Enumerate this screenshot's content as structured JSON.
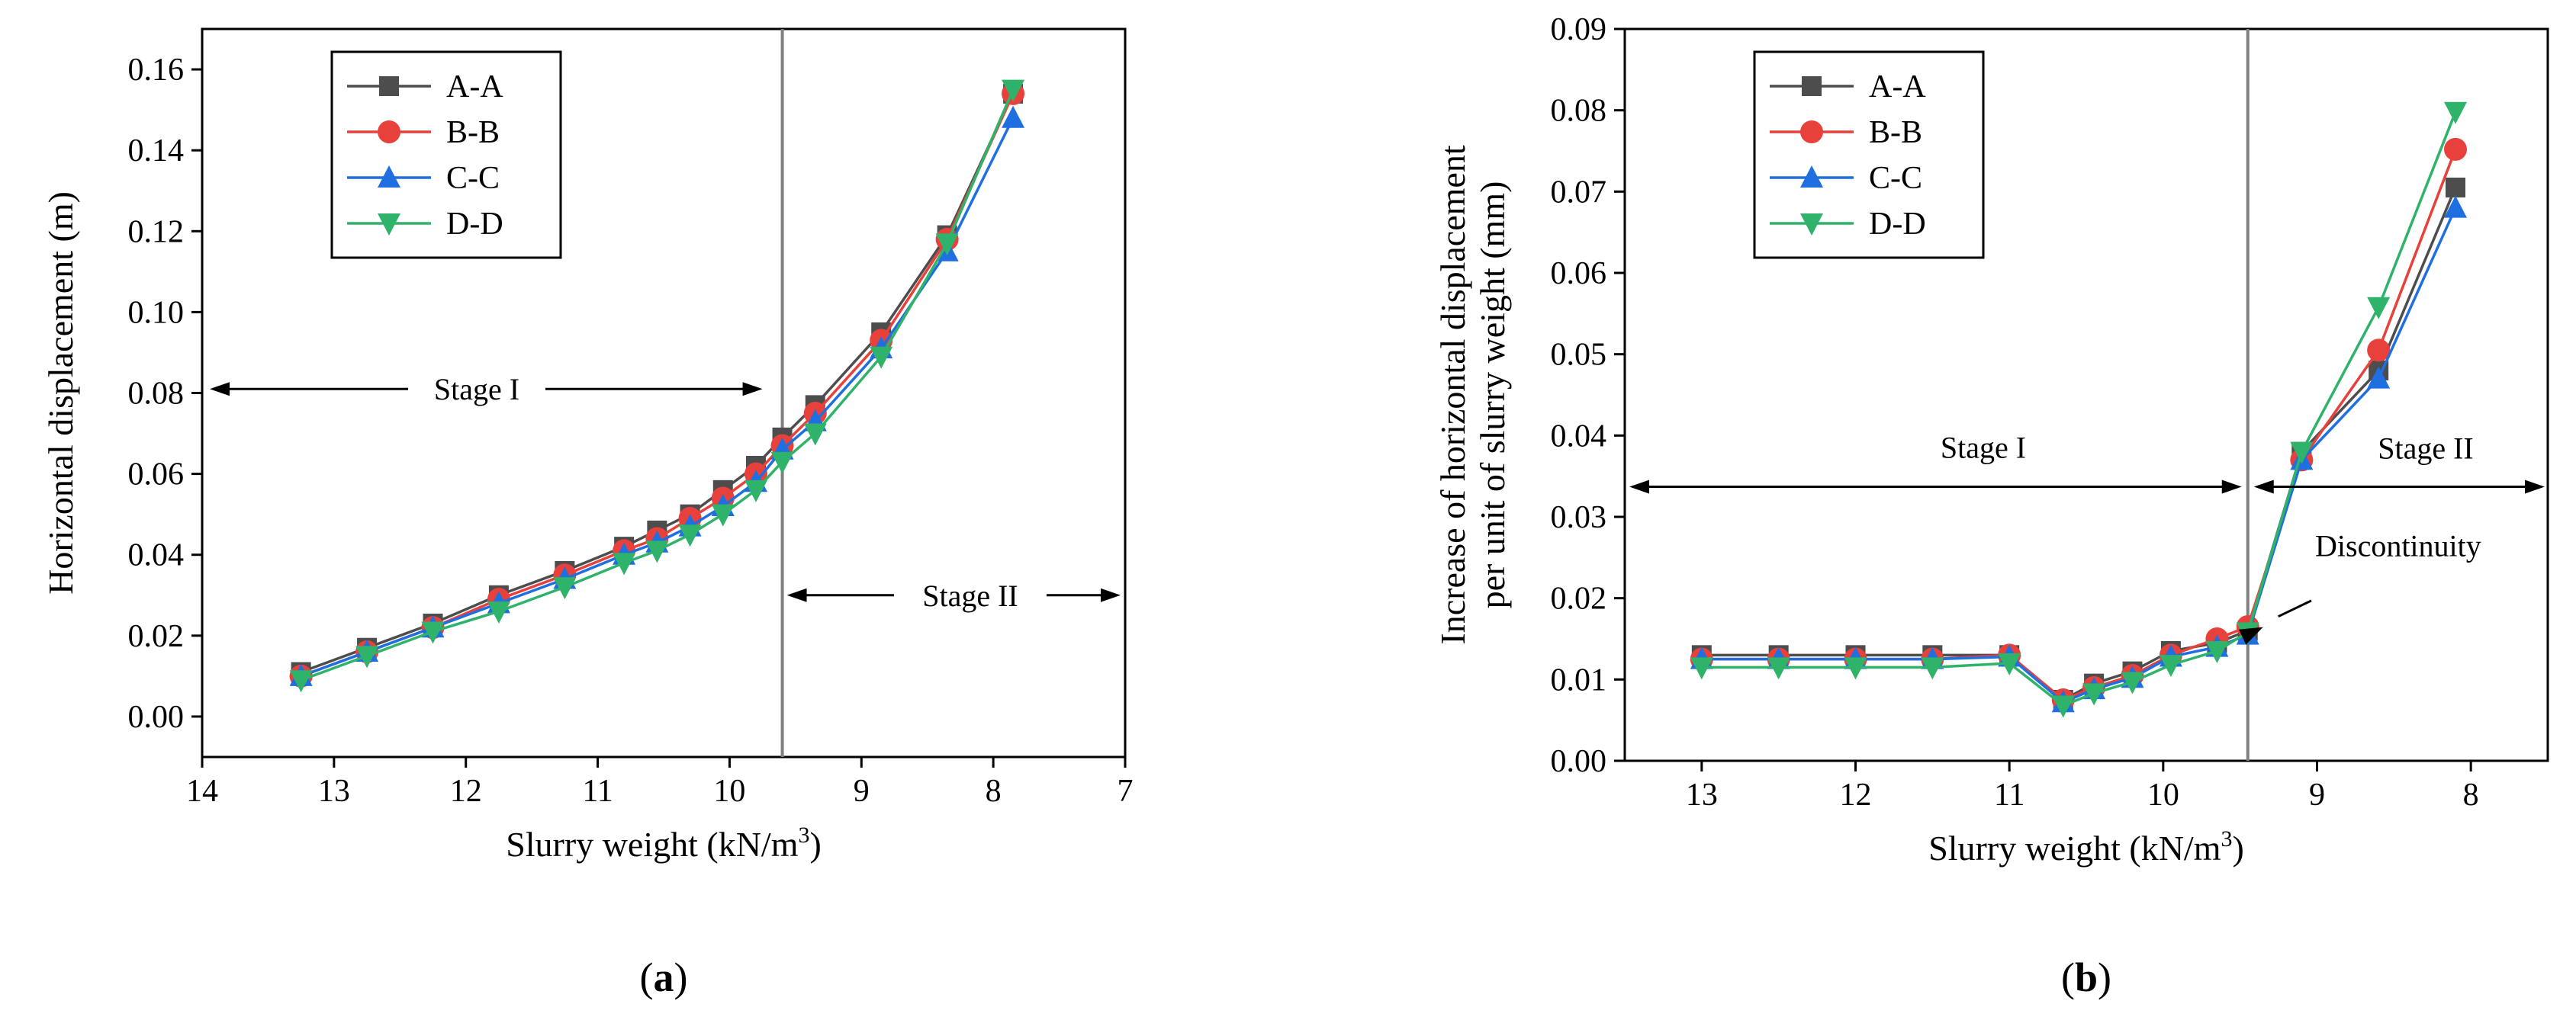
{
  "colors": {
    "A-A": "#4d4d4d",
    "B-B": "#e8413c",
    "C-C": "#1f6fe0",
    "D-D": "#2fb36a",
    "divider": "#808080"
  },
  "chart_data": [
    {
      "id": "a",
      "panel_label_prefix": "(",
      "panel_label_letter": "a",
      "panel_label_suffix": ")",
      "type": "line",
      "xlabel_main": "Slurry weight (kN/m",
      "xlabel_sup": "3",
      "xlabel_end": ")",
      "ylabel": "Horizontal displacement (m)",
      "xlim": [
        14,
        7
      ],
      "ylim": [
        -0.01,
        0.17
      ],
      "xticks": [
        "14",
        "13",
        "12",
        "11",
        "10",
        "9",
        "8",
        "7"
      ],
      "yticks": [
        "0.00",
        "0.02",
        "0.04",
        "0.06",
        "0.08",
        "0.10",
        "0.12",
        "0.14",
        "0.16"
      ],
      "divider_x": 9.6,
      "stage_labels": [
        "Stage I",
        "Stage II"
      ],
      "x": [
        13.25,
        12.75,
        12.25,
        11.75,
        11.25,
        10.8,
        10.55,
        10.3,
        10.05,
        9.8,
        9.6,
        9.35,
        8.85,
        8.35,
        7.85
      ],
      "series": [
        {
          "name": "A-A",
          "marker": "square",
          "values": [
            0.011,
            0.017,
            0.023,
            0.03,
            0.036,
            0.042,
            0.046,
            0.05,
            0.056,
            0.062,
            0.069,
            0.077,
            0.095,
            0.119,
            0.154
          ]
        },
        {
          "name": "B-B",
          "marker": "circle",
          "values": [
            0.01,
            0.016,
            0.022,
            0.029,
            0.035,
            0.041,
            0.044,
            0.049,
            0.054,
            0.06,
            0.067,
            0.075,
            0.093,
            0.118,
            0.154
          ]
        },
        {
          "name": "C-C",
          "marker": "triangle-up",
          "values": [
            0.01,
            0.016,
            0.022,
            0.028,
            0.034,
            0.04,
            0.043,
            0.047,
            0.052,
            0.058,
            0.066,
            0.073,
            0.091,
            0.115,
            0.148
          ]
        },
        {
          "name": "D-D",
          "marker": "triangle-down",
          "values": [
            0.009,
            0.015,
            0.021,
            0.026,
            0.032,
            0.038,
            0.041,
            0.045,
            0.05,
            0.056,
            0.063,
            0.07,
            0.089,
            0.117,
            0.155
          ]
        }
      ]
    },
    {
      "id": "b",
      "panel_label_prefix": "(",
      "panel_label_letter": "b",
      "panel_label_suffix": ")",
      "type": "line",
      "xlabel_main": "Slurry weight (kN/m",
      "xlabel_sup": "3",
      "xlabel_end": ")",
      "ylabel_line1": "Increase of horizontal displacement",
      "ylabel_line2": "per unit of slurry weight (mm)",
      "xlim": [
        13.5,
        7.5
      ],
      "ylim": [
        0,
        0.09
      ],
      "xticks": [
        "13",
        "12",
        "11",
        "10",
        "9",
        "8"
      ],
      "yticks": [
        "0.00",
        "0.01",
        "0.02",
        "0.03",
        "0.04",
        "0.05",
        "0.06",
        "0.07",
        "0.08",
        "0.09"
      ],
      "divider_x": 9.45,
      "stage_labels": [
        "Stage I",
        "Stage II"
      ],
      "annotation": "Discontinuity",
      "x": [
        13.0,
        12.5,
        12.0,
        11.5,
        11.0,
        10.65,
        10.45,
        10.2,
        9.95,
        9.65,
        9.45,
        9.1,
        8.6,
        8.1
      ],
      "series": [
        {
          "name": "A-A",
          "marker": "square",
          "values": [
            0.013,
            0.013,
            0.013,
            0.013,
            0.013,
            0.0075,
            0.0095,
            0.011,
            0.0135,
            0.0145,
            0.016,
            0.038,
            0.048,
            0.0705
          ]
        },
        {
          "name": "B-B",
          "marker": "circle",
          "values": [
            0.0125,
            0.0125,
            0.0125,
            0.0125,
            0.013,
            0.0075,
            0.009,
            0.0105,
            0.013,
            0.015,
            0.0165,
            0.037,
            0.0505,
            0.0752
          ]
        },
        {
          "name": "C-C",
          "marker": "triangle-up",
          "values": [
            0.0125,
            0.0125,
            0.0125,
            0.0125,
            0.0128,
            0.0072,
            0.0088,
            0.0102,
            0.0128,
            0.014,
            0.0155,
            0.037,
            0.047,
            0.068
          ]
        },
        {
          "name": "D-D",
          "marker": "triangle-down",
          "values": [
            0.0115,
            0.0115,
            0.0115,
            0.0115,
            0.012,
            0.0068,
            0.0083,
            0.0097,
            0.0118,
            0.0135,
            0.0158,
            0.038,
            0.0558,
            0.0798
          ]
        }
      ]
    }
  ]
}
